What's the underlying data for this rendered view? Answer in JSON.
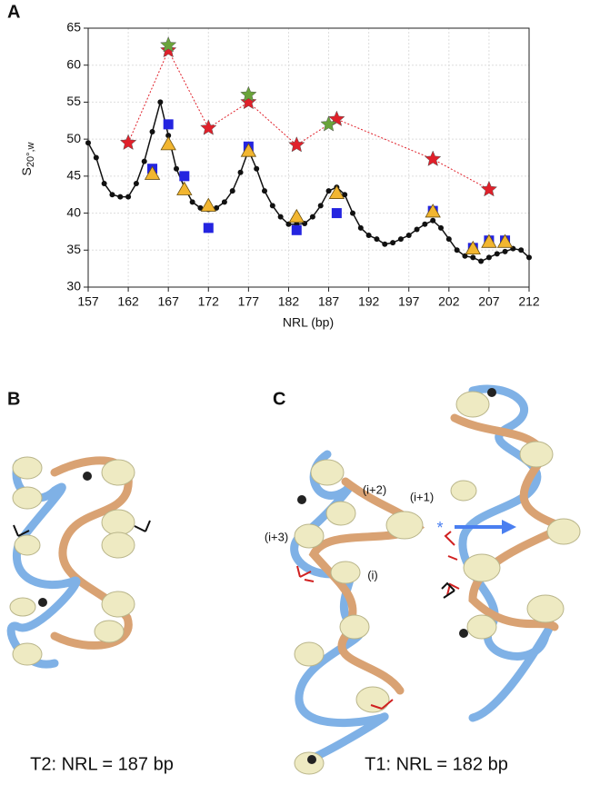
{
  "chart_data": {
    "type": "line",
    "panel": "A",
    "y_label": {
      "main": "S",
      "sub": "20°,w"
    },
    "x_label": "NRL (bp)",
    "xlim": [
      157,
      212
    ],
    "xticks": [
      157,
      162,
      167,
      172,
      177,
      182,
      187,
      192,
      197,
      202,
      207,
      212
    ],
    "ylim": [
      30,
      65
    ],
    "yticks": [
      30,
      35,
      40,
      45,
      50,
      55,
      60,
      65
    ],
    "grid": true,
    "series": [
      {
        "color": "#111111",
        "marker": "circle",
        "linestyle": "solid",
        "x": [
          157,
          158,
          159,
          160,
          161,
          162,
          163,
          164,
          165,
          166,
          167,
          168,
          169,
          170,
          171,
          172,
          173,
          174,
          175,
          176,
          177,
          178,
          179,
          180,
          181,
          182,
          183,
          184,
          185,
          186,
          187,
          188,
          189,
          190,
          191,
          192,
          193,
          194,
          195,
          196,
          197,
          198,
          199,
          200,
          201,
          202,
          203,
          204,
          205,
          206,
          207,
          208,
          209,
          210,
          211,
          212
        ],
        "values": [
          49.5,
          47.5,
          44,
          42.5,
          42.2,
          42.2,
          44,
          47,
          51,
          55,
          50.5,
          46,
          43.5,
          41.5,
          40.7,
          40.5,
          40.7,
          41.5,
          43,
          45.5,
          48.5,
          46,
          43,
          41,
          39.5,
          38.5,
          38.5,
          38.6,
          39.5,
          41,
          43,
          43.5,
          42.5,
          40,
          38,
          37,
          36.5,
          35.8,
          36,
          36.5,
          37,
          37.8,
          38.5,
          39,
          38,
          36.5,
          35,
          34.2,
          34,
          33.5,
          34,
          34.5,
          34.8,
          35.2,
          35,
          34
        ]
      },
      {
        "color": "#e0202a",
        "marker": "star",
        "linestyle": "dotted",
        "x": [
          162,
          167,
          172,
          177,
          183,
          188,
          200,
          207
        ],
        "values": [
          49.5,
          62,
          51.5,
          55,
          49.2,
          52.7,
          47.3,
          43.2
        ]
      },
      {
        "color": "#6aa33a",
        "marker": "star",
        "x": [
          167,
          177,
          187
        ],
        "values": [
          62.7,
          56,
          52
        ]
      },
      {
        "color": "#2424e0",
        "marker": "square",
        "x": [
          165,
          167,
          169,
          172,
          177,
          183,
          188,
          200,
          205,
          207,
          209
        ],
        "values": [
          46,
          52,
          45,
          38,
          49,
          37.7,
          40,
          40.3,
          35.3,
          36.3,
          36.3
        ]
      },
      {
        "color": "#f2b630",
        "marker": "triangle",
        "x": [
          165,
          167,
          169,
          172,
          177,
          183,
          188,
          200,
          205,
          207,
          209
        ],
        "values": [
          45.3,
          49.3,
          43.2,
          41,
          48.4,
          39.5,
          42.7,
          40.2,
          35.2,
          36.1,
          36.1
        ]
      }
    ]
  },
  "figure": {
    "panel_b": "B",
    "panel_c": "C",
    "labels": [
      "(i+2)",
      "(i+1)",
      "(i+3)",
      "(i)",
      "*"
    ],
    "caption_b": "T2: NRL = 187 bp",
    "caption_c": "T1: NRL = 182 bp"
  }
}
